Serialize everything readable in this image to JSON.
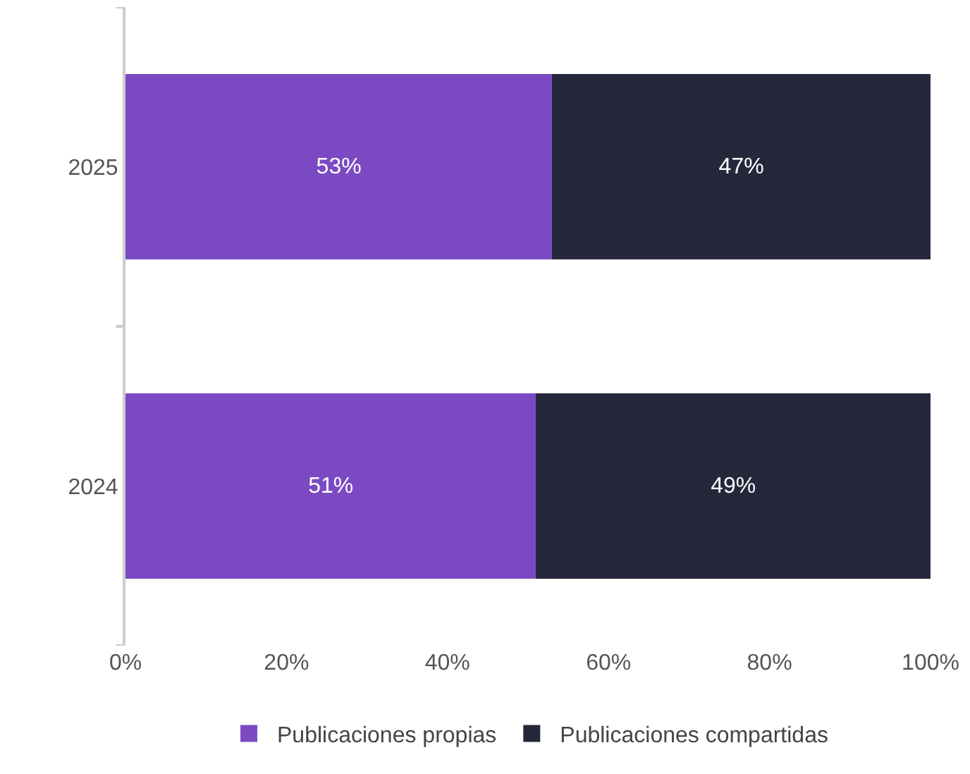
{
  "chart_data": {
    "type": "bar",
    "orientation": "horizontal",
    "stacked": true,
    "categories": [
      "2025",
      "2024"
    ],
    "series": [
      {
        "name": "Publicaciones propias",
        "color": "#7b4ac2",
        "values": [
          53,
          51
        ],
        "value_labels": [
          "53%",
          "51%"
        ]
      },
      {
        "name": "Publicaciones compartidas",
        "color": "#25273b",
        "values": [
          47,
          49
        ],
        "value_labels": [
          "47%",
          "49%"
        ]
      }
    ],
    "xlim": [
      0,
      100
    ],
    "xticks": [
      {
        "value": 0,
        "label": "0%"
      },
      {
        "value": 20,
        "label": "20%"
      },
      {
        "value": 40,
        "label": "40%"
      },
      {
        "value": 60,
        "label": "60%"
      },
      {
        "value": 80,
        "label": "80%"
      },
      {
        "value": 100,
        "label": "100%"
      }
    ],
    "grid": false,
    "legend": "bottom"
  }
}
